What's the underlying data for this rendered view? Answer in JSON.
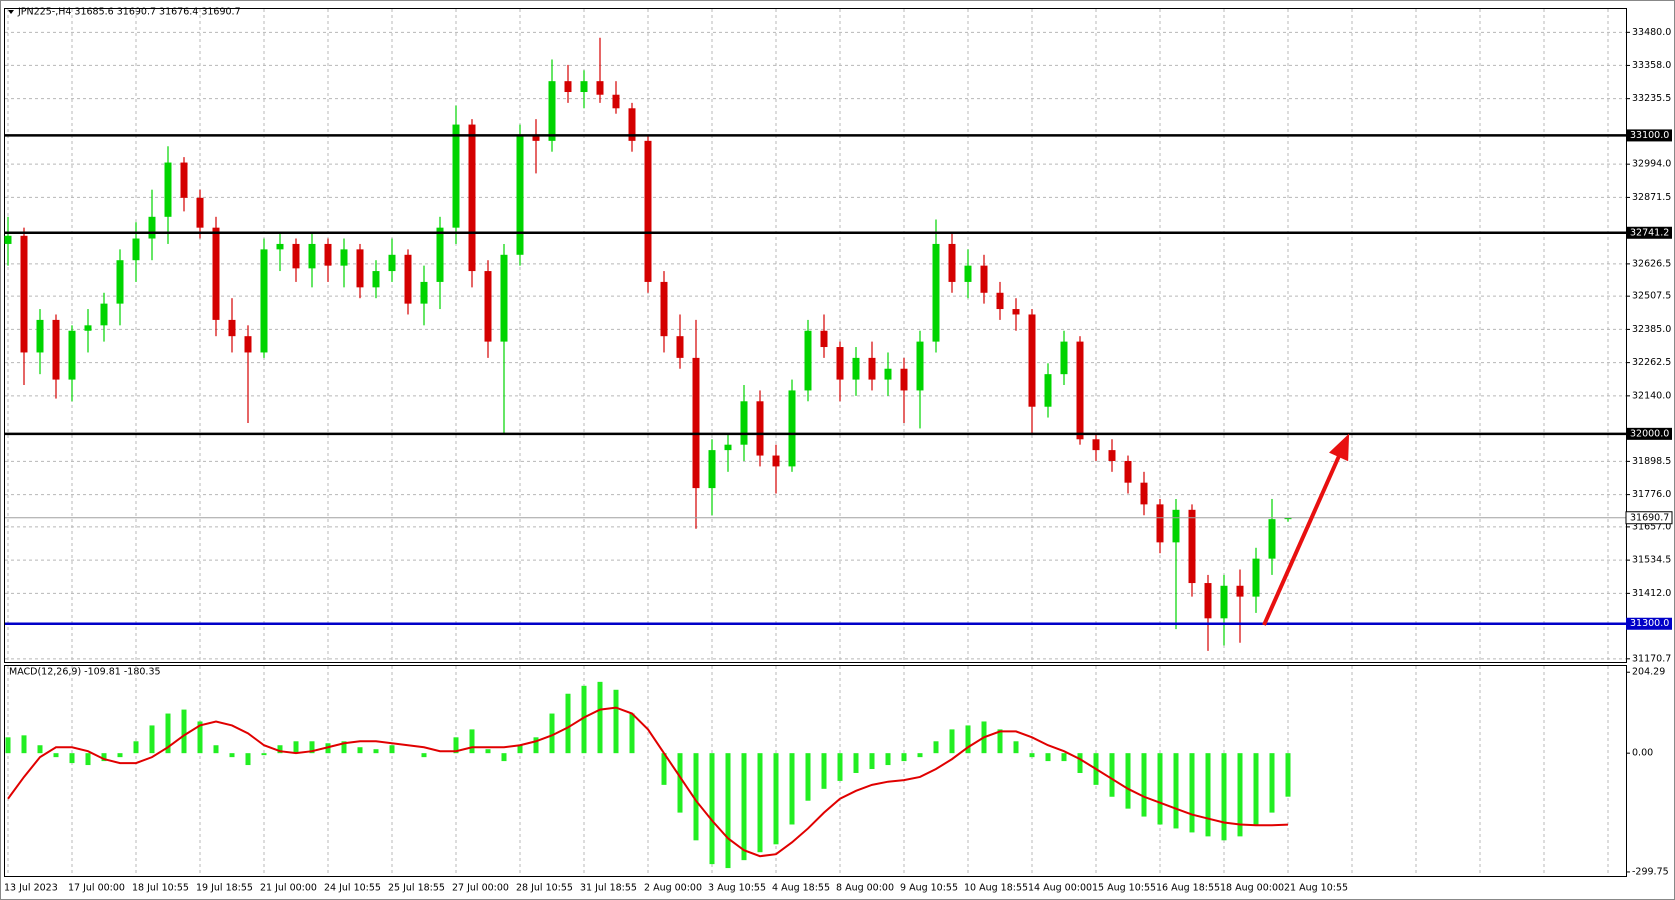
{
  "chart_data": [
    {
      "type": "candlestick",
      "title": "JPN225-,H4  31685.6 31690.7 31676.4 31690.7",
      "categories": [
        "13 Jul 2023",
        null,
        null,
        null,
        "17 Jul 00:00",
        null,
        null,
        null,
        "18 Jul 10:55",
        null,
        null,
        null,
        "19 Jul 18:55",
        null,
        null,
        null,
        "21 Jul 00:00",
        null,
        null,
        null,
        "24 Jul 10:55",
        null,
        null,
        null,
        "25 Jul 18:55",
        null,
        null,
        null,
        "27 Jul 00:00",
        null,
        null,
        null,
        "28 Jul 10:55",
        null,
        null,
        null,
        "31 Jul 18:55",
        null,
        null,
        null,
        "2 Aug 00:00",
        null,
        null,
        null,
        "3 Aug 10:55",
        null,
        null,
        null,
        "4 Aug 18:55",
        null,
        null,
        null,
        "8 Aug 00:00",
        null,
        null,
        null,
        "9 Aug 10:55",
        null,
        null,
        null,
        "10 Aug 18:55",
        null,
        null,
        null,
        "14 Aug 00:00",
        null,
        null,
        null,
        "15 Aug 10:55",
        null,
        null,
        null,
        "16 Aug 18:55",
        null,
        null,
        null,
        "18 Aug 00:00",
        null,
        null,
        null,
        "21 Aug 10:55"
      ],
      "open": [
        32700,
        32730,
        32300,
        32420,
        32200,
        32380,
        32400,
        32480,
        32640,
        32720,
        32800,
        33000,
        32870,
        32760,
        32420,
        32360,
        32300,
        32680,
        32700,
        32610,
        32700,
        32620,
        32680,
        32540,
        32600,
        32660,
        32480,
        32560,
        32760,
        33140,
        32600,
        32340,
        32660,
        33100,
        33080,
        33300,
        33260,
        33300,
        33250,
        33200,
        33080,
        32560,
        32360,
        32280,
        31800,
        31940,
        31960,
        32120,
        31920,
        31880,
        32160,
        32380,
        32320,
        32200,
        32280,
        32200,
        32240,
        32160,
        32340,
        32700,
        32560,
        32620,
        32520,
        32460,
        32440,
        32100,
        32220,
        32340,
        31980,
        31940,
        31900,
        31820,
        31740,
        31600,
        31720,
        31450,
        31320,
        31440,
        31400,
        31540,
        31685.6
      ],
      "high": [
        32800,
        32760,
        32460,
        32440,
        32400,
        32460,
        32520,
        32680,
        32780,
        32900,
        33060,
        33020,
        32900,
        32800,
        32500,
        32400,
        32720,
        32740,
        32720,
        32740,
        32720,
        32720,
        32700,
        32640,
        32720,
        32680,
        32620,
        32800,
        33210,
        33160,
        32640,
        32700,
        33140,
        33160,
        33380,
        33360,
        33340,
        33460,
        33300,
        33220,
        33100,
        32600,
        32440,
        32420,
        31980,
        32000,
        32180,
        32160,
        31960,
        32200,
        32420,
        32440,
        32340,
        32320,
        32340,
        32300,
        32280,
        32380,
        32790,
        32740,
        32680,
        32660,
        32560,
        32500,
        32460,
        32260,
        32380,
        32360,
        32000,
        31980,
        31920,
        31860,
        31760,
        31760,
        31740,
        31480,
        31480,
        31500,
        31580,
        31760,
        31690.7
      ],
      "low": [
        32620,
        32180,
        32220,
        32130,
        32120,
        32300,
        32340,
        32400,
        32560,
        32640,
        32700,
        32820,
        32720,
        32360,
        32300,
        32040,
        32280,
        32600,
        32560,
        32540,
        32560,
        32540,
        32500,
        32500,
        32560,
        32440,
        32400,
        32460,
        32700,
        32540,
        32280,
        32000,
        32620,
        32960,
        33040,
        33220,
        33200,
        33220,
        33180,
        33040,
        32520,
        32300,
        32240,
        31650,
        31700,
        31860,
        31900,
        31880,
        31780,
        31860,
        32120,
        32280,
        32120,
        32140,
        32160,
        32140,
        32040,
        32020,
        32300,
        32520,
        32500,
        32480,
        32420,
        32380,
        32000,
        32060,
        32180,
        31960,
        31900,
        31860,
        31780,
        31700,
        31560,
        31280,
        31400,
        31200,
        31220,
        31230,
        31340,
        31480,
        31676.4
      ],
      "close": [
        32730,
        32300,
        32420,
        32200,
        32380,
        32400,
        32480,
        32640,
        32720,
        32800,
        33000,
        32870,
        32760,
        32420,
        32360,
        32300,
        32680,
        32700,
        32610,
        32700,
        32620,
        32680,
        32540,
        32600,
        32660,
        32480,
        32560,
        32760,
        33140,
        32600,
        32340,
        32660,
        33100,
        33080,
        33300,
        33260,
        33300,
        33250,
        33200,
        33080,
        32560,
        32360,
        32280,
        31800,
        31940,
        31960,
        32120,
        31920,
        31880,
        32160,
        32380,
        32320,
        32200,
        32280,
        32200,
        32240,
        32160,
        32340,
        32700,
        32560,
        32620,
        32520,
        32460,
        32440,
        32100,
        32220,
        32340,
        31980,
        31940,
        31900,
        31820,
        31740,
        31600,
        31720,
        31450,
        31320,
        31440,
        31400,
        31540,
        31685.6,
        31690.7
      ],
      "up_color": "#00d400",
      "down_color": "#d40000",
      "ylim": [
        31159,
        33566
      ],
      "yticks": [
        {
          "value": 33480,
          "label": "33480.0"
        },
        {
          "value": 33358,
          "label": "33358.0"
        },
        33235.5,
        {
          "value": 32994,
          "label": "32994.0"
        },
        32871.5,
        32626.5,
        32507.5,
        {
          "value": 32385,
          "label": "32385.0"
        },
        32262.5,
        {
          "value": 32140,
          "label": "32140.0"
        },
        31898.5,
        {
          "value": 31776,
          "label": "31776.0"
        },
        {
          "value": 31657,
          "label": "31657.0"
        },
        31534.5,
        {
          "value": 31412,
          "label": "31412.0"
        },
        31170.7
      ],
      "levels": [
        {
          "value": 33100,
          "label": "33100.0",
          "color": "#000000"
        },
        {
          "value": 32741.2,
          "label": "32741.2",
          "color": "#000000"
        },
        {
          "value": 32000,
          "label": "32000.0",
          "color": "#000000"
        },
        {
          "value": 31300,
          "label": "31300.0",
          "color": "#0000c8"
        }
      ],
      "last_price": 31690.7,
      "grid": true
    },
    {
      "type": "macd",
      "title": "MACD(12,26,9) -109.81 -180.35",
      "histogram": [
        40,
        45,
        20,
        -10,
        -25,
        -30,
        -20,
        -10,
        30,
        70,
        100,
        110,
        80,
        20,
        -10,
        -30,
        -5,
        20,
        30,
        30,
        25,
        30,
        15,
        10,
        20,
        0,
        -10,
        0,
        40,
        60,
        10,
        -20,
        20,
        40,
        100,
        150,
        170,
        180,
        160,
        100,
        0,
        -80,
        -150,
        -220,
        -280,
        -290,
        -270,
        -250,
        -230,
        -180,
        -120,
        -90,
        -70,
        -50,
        -40,
        -30,
        -20,
        -10,
        30,
        60,
        70,
        80,
        60,
        30,
        -10,
        -20,
        -20,
        -50,
        -80,
        -110,
        -140,
        -160,
        -180,
        -190,
        -200,
        -210,
        -220,
        -210,
        -180,
        -150,
        -109.81
      ],
      "signal": [
        -115,
        -60,
        -10,
        15,
        15,
        5,
        -15,
        -25,
        -25,
        -10,
        15,
        45,
        70,
        80,
        70,
        50,
        20,
        5,
        0,
        5,
        15,
        25,
        30,
        30,
        25,
        20,
        15,
        5,
        5,
        15,
        15,
        15,
        20,
        30,
        45,
        65,
        90,
        110,
        115,
        100,
        60,
        0,
        -60,
        -120,
        -170,
        -215,
        -245,
        -260,
        -255,
        -225,
        -190,
        -150,
        -115,
        -95,
        -80,
        -72,
        -68,
        -60,
        -40,
        -15,
        15,
        40,
        55,
        55,
        40,
        20,
        5,
        -15,
        -40,
        -65,
        -90,
        -110,
        -125,
        -140,
        -155,
        -165,
        -175,
        -180,
        -182,
        -182,
        -180.35
      ],
      "histogram_color": "#22ee22",
      "signal_color": "#e00000",
      "ylim": [
        -310,
        220
      ],
      "yticks": [
        204.29,
        {
          "value": 0,
          "label": "0.00"
        },
        -299.75
      ]
    }
  ]
}
